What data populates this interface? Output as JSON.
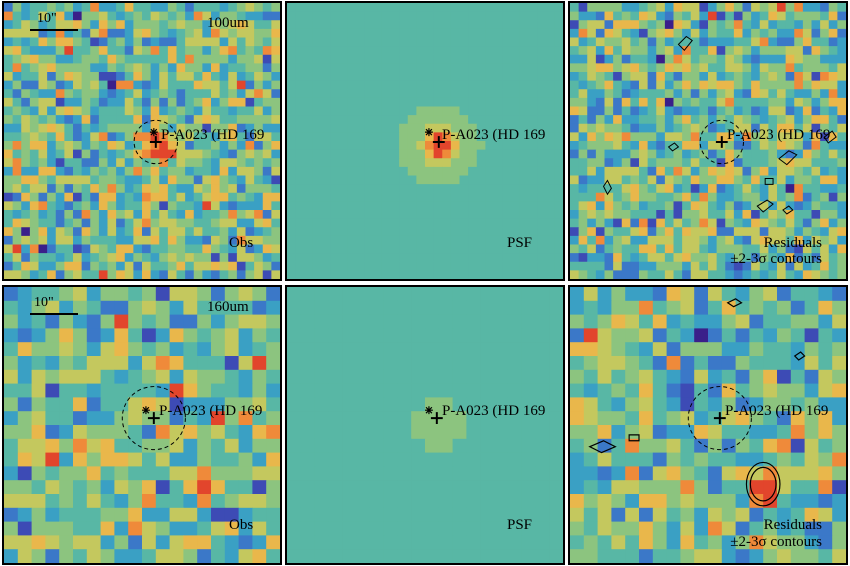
{
  "rows": [
    {
      "band": "100um",
      "scale_label": "10\"",
      "obs_label": "Obs",
      "psf_label": "PSF",
      "res_label_1": "Residuals",
      "res_label_2": "±2-3σ contours",
      "target": "P-A023 (HD 169"
    },
    {
      "band": "160um",
      "scale_label": "10\"",
      "obs_label": "Obs",
      "psf_label": "PSF",
      "res_label_1": "Residuals",
      "res_label_2": "±2-3σ contours",
      "target": "P-A023 (HD 169"
    }
  ],
  "colormap": [
    "#3a1f8a",
    "#3d4bb5",
    "#3b78c8",
    "#3aa0c4",
    "#58b7a5",
    "#8cc47f",
    "#c4c85e",
    "#e9b74b",
    "#ef8a3a",
    "#e2452c"
  ]
}
